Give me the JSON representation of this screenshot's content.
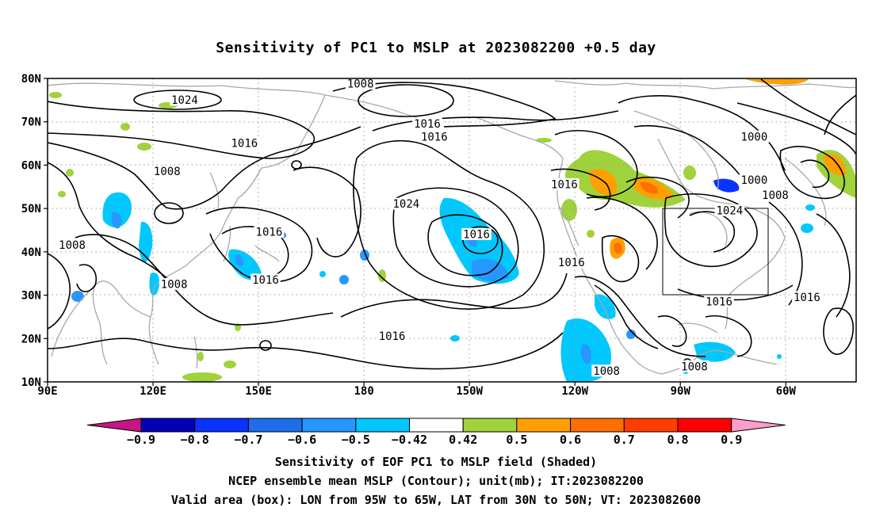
{
  "title": "Sensitivity of PC1 to MSLP at 2023082200 +0.5 day",
  "lat_ticks": [
    "80N",
    "70N",
    "60N",
    "50N",
    "40N",
    "30N",
    "20N",
    "10N"
  ],
  "lon_ticks": [
    "90E",
    "120E",
    "150E",
    "180",
    "150W",
    "120W",
    "90W",
    "60W"
  ],
  "contour_labels": [
    {
      "text": "1008",
      "lon": 179,
      "lat": 78.7
    },
    {
      "text": "1024",
      "lon": 129,
      "lat": 75.0
    },
    {
      "text": "1016",
      "lon": 198,
      "lat": 69.5
    },
    {
      "text": "1016",
      "lon": 200,
      "lat": 66.5
    },
    {
      "text": "1016",
      "lon": 146,
      "lat": 65.0
    },
    {
      "text": "1000",
      "lon": 291,
      "lat": 66.5
    },
    {
      "text": "1008",
      "lon": 124,
      "lat": 58.5
    },
    {
      "text": "1016",
      "lon": 237,
      "lat": 55.5
    },
    {
      "text": "1000",
      "lon": 291,
      "lat": 56.5
    },
    {
      "text": "1008",
      "lon": 297,
      "lat": 53.0
    },
    {
      "text": "1024",
      "lon": 192,
      "lat": 51.0
    },
    {
      "text": "1024",
      "lon": 284,
      "lat": 49.5
    },
    {
      "text": "1016",
      "lon": 153,
      "lat": 44.5
    },
    {
      "text": "1016",
      "lon": 212,
      "lat": 44.0
    },
    {
      "text": "1008",
      "lon": 97,
      "lat": 41.5
    },
    {
      "text": "1016",
      "lon": 239,
      "lat": 37.5
    },
    {
      "text": "1016",
      "lon": 152,
      "lat": 33.5
    },
    {
      "text": "1008",
      "lon": 126,
      "lat": 32.5
    },
    {
      "text": "1016",
      "lon": 281,
      "lat": 28.5
    },
    {
      "text": "1016",
      "lon": 306,
      "lat": 29.5
    },
    {
      "text": "1016",
      "lon": 188,
      "lat": 20.5
    },
    {
      "text": "1008",
      "lon": 249,
      "lat": 12.5
    },
    {
      "text": "1008",
      "lon": 274,
      "lat": 13.5
    }
  ],
  "colorbar": {
    "labels": [
      "−0.9",
      "−0.8",
      "−0.7",
      "−0.6",
      "−0.5",
      "−0.42",
      "0.42",
      "0.5",
      "0.6",
      "0.7",
      "0.8",
      "0.9"
    ],
    "colors": [
      "#0000b4",
      "#0a32ff",
      "#1e6eeb",
      "#2896ff",
      "#00c8ff",
      "#ffffff",
      "#a0d23c",
      "#ffa000",
      "#ff6e00",
      "#ff3c00",
      "#ff0000"
    ],
    "low_extend_color": "#c71585",
    "high_extend_color": "#ff9ec8"
  },
  "caption": {
    "line1": "Sensitivity of EOF PC1 to MSLP field (Shaded)",
    "line2": "NCEP ensemble mean MSLP (Contour); unit(mb); IT:2023082200",
    "line3": "Valid area (box): LON from 95W to 65W, LAT from 30N to 50N; VT: 2023082600"
  },
  "valid_box": {
    "lon_min": 265,
    "lon_max": 295,
    "lat_min": 30,
    "lat_max": 50
  }
}
